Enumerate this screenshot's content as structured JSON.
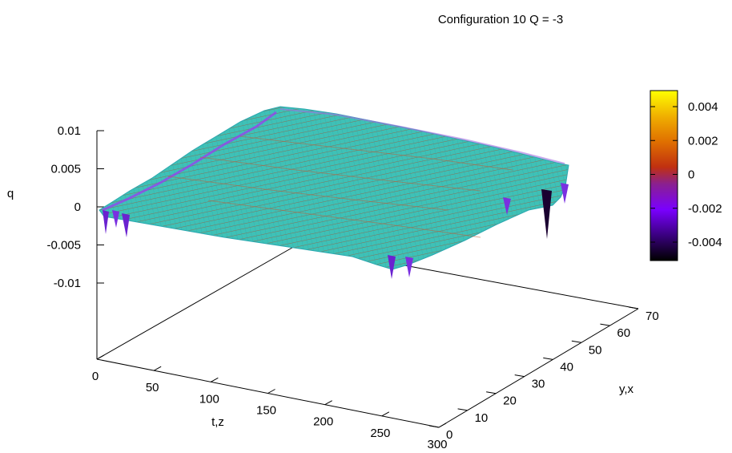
{
  "chart_data": {
    "type": "surface",
    "title": "Configuration  10  Q = -3",
    "xlabel": "t,z",
    "ylabel": "y,x",
    "zlabel": "q",
    "x_ticks": [
      "0",
      "50",
      "100",
      "150",
      "200",
      "250",
      "300"
    ],
    "y_ticks": [
      "0",
      "10",
      "20",
      "30",
      "40",
      "50",
      "60",
      "70"
    ],
    "z_ticks": [
      "0.01",
      "0.005",
      "0",
      "-0.005",
      "-0.01"
    ],
    "xlim": [
      0,
      300
    ],
    "ylim": [
      0,
      70
    ],
    "zlim": [
      -0.01,
      0.01
    ],
    "colorbar": {
      "ticks": [
        "0.004",
        "0.002",
        "0",
        "-0.002",
        "-0.004"
      ],
      "range": [
        -0.005,
        0.005
      ],
      "palette": [
        "#000000",
        "#3a0080",
        "#7a00ff",
        "#8a2090",
        "#c03010",
        "#e07000",
        "#f0b000",
        "#ffff00"
      ]
    },
    "surface_color": "#3fc1b6",
    "surface_line_color": "#c0603a"
  }
}
